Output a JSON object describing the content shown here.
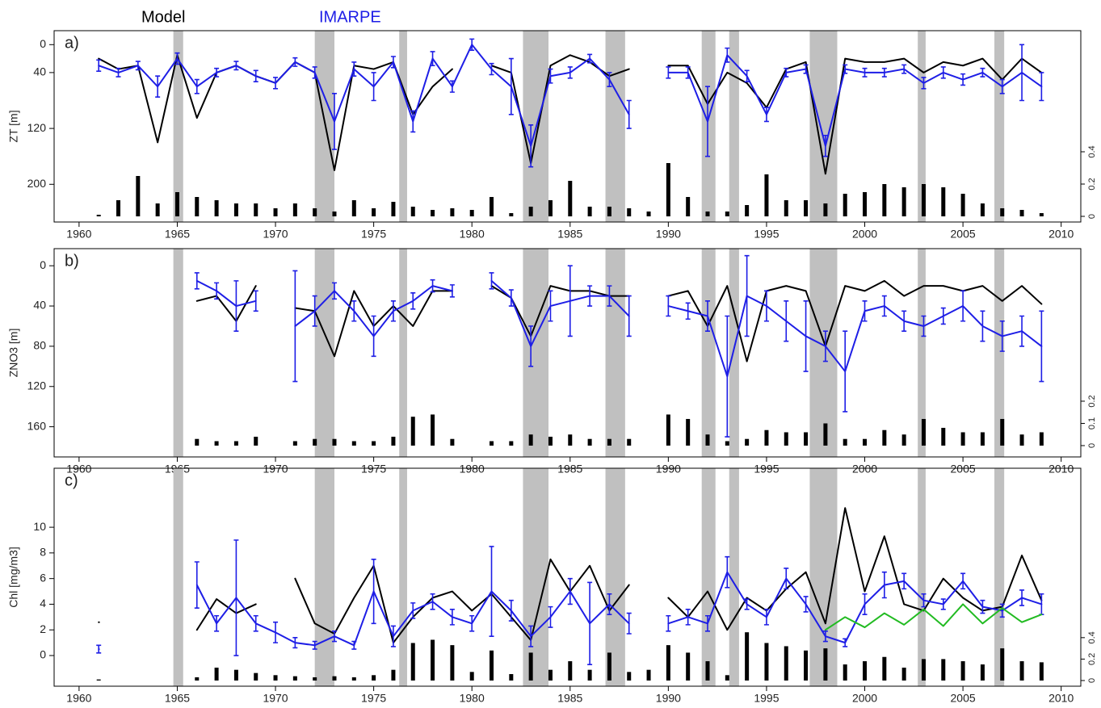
{
  "chart_data": [
    {
      "type": "line",
      "title": "a)",
      "ylabel": "ZT [m]",
      "xlim": [
        1958.73,
        2011.0
      ],
      "xticks": [
        1960,
        1965,
        1970,
        1975,
        1980,
        1985,
        1990,
        1995,
        2000,
        2005,
        2010
      ],
      "ylim": [
        254,
        -20
      ],
      "yticks": [
        0,
        40,
        120,
        200
      ],
      "y2lim": [
        -0.035,
        1.15
      ],
      "y2ticks": [
        0,
        0.2,
        0.4
      ],
      "shade_color": "#c0c0c0",
      "shaded_periods": [
        [
          1964.8,
          1965.3
        ],
        [
          1972.0,
          1973.0
        ],
        [
          1976.3,
          1976.7
        ],
        [
          1982.6,
          1983.9
        ],
        [
          1986.8,
          1987.8
        ],
        [
          1991.7,
          1992.4
        ],
        [
          1993.1,
          1993.6
        ],
        [
          1997.2,
          1998.6
        ],
        [
          2002.7,
          2003.1
        ],
        [
          2006.6,
          2007.1
        ]
      ],
      "x": [
        1961,
        1962,
        1963,
        1964,
        1965,
        1966,
        1967,
        1968,
        1969,
        1970,
        1971,
        1972,
        1973,
        1974,
        1975,
        1976,
        1977,
        1978,
        1979,
        1980,
        1981,
        1982,
        1983,
        1984,
        1985,
        1986,
        1987,
        1988,
        1989,
        1990,
        1991,
        1992,
        1993,
        1994,
        1995,
        1996,
        1997,
        1998,
        1999,
        2000,
        2001,
        2002,
        2003,
        2004,
        2005,
        2006,
        2007,
        2008,
        2009
      ],
      "series": [
        {
          "name": "Model",
          "color": "#000000",
          "values": [
            20,
            35,
            30,
            140,
            15,
            105,
            40,
            30,
            45,
            55,
            25,
            40,
            180,
            30,
            35,
            25,
            100,
            60,
            35,
            null,
            30,
            40,
            170,
            30,
            15,
            25,
            45,
            35,
            null,
            30,
            30,
            85,
            40,
            55,
            90,
            35,
            25,
            185,
            20,
            25,
            25,
            20,
            40,
            25,
            30,
            20,
            50,
            20,
            40
          ]
        },
        {
          "name": "IMARPE",
          "color": "#1e1ee6",
          "values": [
            30,
            40,
            30,
            60,
            20,
            60,
            40,
            30,
            45,
            55,
            25,
            40,
            110,
            35,
            60,
            25,
            110,
            20,
            60,
            0,
            35,
            60,
            145,
            45,
            40,
            20,
            50,
            100,
            null,
            40,
            40,
            110,
            15,
            45,
            100,
            40,
            35,
            145,
            35,
            40,
            40,
            35,
            55,
            40,
            50,
            40,
            60,
            40,
            60
          ],
          "errors": [
            8,
            6,
            6,
            15,
            8,
            10,
            6,
            6,
            8,
            8,
            6,
            8,
            40,
            10,
            20,
            8,
            15,
            10,
            8,
            8,
            8,
            40,
            30,
            10,
            8,
            6,
            10,
            20,
            null,
            8,
            8,
            50,
            10,
            8,
            10,
            6,
            6,
            15,
            6,
            6,
            6,
            6,
            8,
            8,
            8,
            6,
            10,
            40,
            20
          ]
        },
        {
          "type": "bar",
          "axis": "y2",
          "color": "#000000",
          "values": [
            0.01,
            0.1,
            0.25,
            0.08,
            0.15,
            0.12,
            0.1,
            0.08,
            0.08,
            0.05,
            0.08,
            0.05,
            0.03,
            0.1,
            0.05,
            0.09,
            0.06,
            0.04,
            0.05,
            0.04,
            0.12,
            0.02,
            0.06,
            0.1,
            0.22,
            0.06,
            0.06,
            0.05,
            0.03,
            0.33,
            0.12,
            0.03,
            0.03,
            0.07,
            0.26,
            0.1,
            0.1,
            0.08,
            0.14,
            0.15,
            0.2,
            0.18,
            0.2,
            0.18,
            0.14,
            0.08,
            0.05,
            0.04,
            0.02
          ]
        }
      ]
    },
    {
      "type": "line",
      "title": "b)",
      "ylabel": "ZNO3 [m]",
      "xlim": [
        1958.73,
        2011.0
      ],
      "xticks": [
        1960,
        1965,
        1970,
        1975,
        1980,
        1985,
        1990,
        1995,
        2000,
        2005,
        2010
      ],
      "ylim": [
        190,
        -17
      ],
      "yticks": [
        0,
        40,
        80,
        120,
        160
      ],
      "y2lim": [
        -0.051,
        0.887
      ],
      "y2ticks": [
        0,
        0.1,
        0.2
      ],
      "shade_color": "#c0c0c0",
      "shaded_periods": [
        [
          1964.8,
          1965.3
        ],
        [
          1972.0,
          1973.0
        ],
        [
          1976.3,
          1976.7
        ],
        [
          1982.6,
          1983.9
        ],
        [
          1986.8,
          1987.8
        ],
        [
          1991.7,
          1992.4
        ],
        [
          1993.1,
          1993.6
        ],
        [
          1997.2,
          1998.6
        ],
        [
          2002.7,
          2003.1
        ],
        [
          2006.6,
          2007.1
        ]
      ],
      "x": [
        1961,
        1962,
        1963,
        1964,
        1965,
        1966,
        1967,
        1968,
        1969,
        1970,
        1971,
        1972,
        1973,
        1974,
        1975,
        1976,
        1977,
        1978,
        1979,
        1980,
        1981,
        1982,
        1983,
        1984,
        1985,
        1986,
        1987,
        1988,
        1989,
        1990,
        1991,
        1992,
        1993,
        1994,
        1995,
        1996,
        1997,
        1998,
        1999,
        2000,
        2001,
        2002,
        2003,
        2004,
        2005,
        2006,
        2007,
        2008,
        2009
      ],
      "series": [
        {
          "color": "#000000",
          "values": [
            null,
            null,
            null,
            null,
            null,
            35,
            30,
            55,
            20,
            null,
            42,
            45,
            90,
            25,
            60,
            40,
            60,
            25,
            25,
            null,
            20,
            32,
            70,
            20,
            25,
            25,
            30,
            30,
            null,
            30,
            25,
            60,
            20,
            95,
            25,
            20,
            25,
            80,
            20,
            25,
            15,
            30,
            20,
            20,
            25,
            20,
            35,
            20,
            38
          ]
        },
        {
          "color": "#1e1ee6",
          "values": [
            null,
            null,
            null,
            null,
            null,
            15,
            25,
            40,
            35,
            null,
            60,
            45,
            25,
            45,
            70,
            45,
            35,
            20,
            25,
            null,
            15,
            32,
            80,
            40,
            35,
            30,
            30,
            50,
            null,
            40,
            45,
            50,
            110,
            30,
            40,
            55,
            70,
            80,
            105,
            45,
            40,
            55,
            60,
            50,
            40,
            60,
            70,
            65,
            80
          ],
          "errors": [
            null,
            null,
            null,
            null,
            null,
            8,
            8,
            25,
            10,
            null,
            55,
            15,
            8,
            10,
            20,
            10,
            8,
            6,
            6,
            null,
            8,
            8,
            20,
            15,
            35,
            10,
            10,
            20,
            null,
            10,
            8,
            15,
            60,
            40,
            15,
            20,
            35,
            15,
            40,
            10,
            10,
            10,
            10,
            8,
            15,
            15,
            15,
            15,
            35
          ]
        },
        {
          "type": "bar",
          "axis": "y2",
          "color": "#000000",
          "values": [
            null,
            null,
            null,
            null,
            null,
            0.03,
            0.02,
            0.02,
            0.04,
            null,
            0.02,
            0.03,
            0.03,
            0.02,
            0.02,
            0.04,
            0.13,
            0.14,
            0.03,
            null,
            0.02,
            0.02,
            0.05,
            0.04,
            0.05,
            0.03,
            0.03,
            0.03,
            null,
            0.14,
            0.12,
            0.05,
            0.02,
            0.03,
            0.07,
            0.06,
            0.06,
            0.1,
            0.03,
            0.03,
            0.07,
            0.05,
            0.12,
            0.08,
            0.06,
            0.06,
            0.12,
            0.05,
            0.06
          ]
        }
      ]
    },
    {
      "type": "line",
      "title": "c)",
      "ylabel": "Chl [mg/m3]",
      "xlim": [
        1958.73,
        2011.0
      ],
      "xticks": [
        1960,
        1965,
        1970,
        1975,
        1980,
        1985,
        1990,
        1995,
        2000,
        2005,
        2010
      ],
      "ylim": [
        -2.39,
        14.6
      ],
      "yticks": [
        0,
        2,
        4,
        6,
        8,
        10
      ],
      "y2lim": [
        -0.053,
        1.98
      ],
      "y2ticks": [
        0,
        0.2,
        0.4
      ],
      "shade_color": "#c0c0c0",
      "shaded_periods": [
        [
          1964.8,
          1965.3
        ],
        [
          1972.0,
          1973.0
        ],
        [
          1976.3,
          1976.7
        ],
        [
          1982.6,
          1983.9
        ],
        [
          1986.8,
          1987.8
        ],
        [
          1991.7,
          1992.4
        ],
        [
          1993.1,
          1993.6
        ],
        [
          1997.2,
          1998.6
        ],
        [
          2002.7,
          2003.1
        ],
        [
          2006.6,
          2007.1
        ]
      ],
      "x": [
        1961,
        1962,
        1963,
        1964,
        1965,
        1966,
        1967,
        1968,
        1969,
        1970,
        1971,
        1972,
        1973,
        1974,
        1975,
        1976,
        1977,
        1978,
        1979,
        1980,
        1981,
        1982,
        1983,
        1984,
        1985,
        1986,
        1987,
        1988,
        1989,
        1990,
        1991,
        1992,
        1993,
        1994,
        1995,
        1996,
        1997,
        1998,
        1999,
        2000,
        2001,
        2002,
        2003,
        2004,
        2005,
        2006,
        2007,
        2008,
        2009
      ],
      "series": [
        {
          "color": "#000000",
          "values": [
            2.6,
            null,
            null,
            null,
            null,
            2.0,
            4.4,
            3.3,
            4.0,
            null,
            6.0,
            2.5,
            1.7,
            4.5,
            7.0,
            1.0,
            3.0,
            4.5,
            5.0,
            3.5,
            4.8,
            3.0,
            1.2,
            7.5,
            5.0,
            7.0,
            3.5,
            5.5,
            null,
            4.5,
            3.0,
            5.0,
            2.0,
            4.5,
            3.5,
            5.2,
            6.5,
            2.5,
            11.5,
            5.0,
            9.3,
            4.0,
            3.5,
            6.0,
            4.5,
            3.5,
            3.8,
            7.8,
            4.3
          ]
        },
        {
          "color": "#1e1ee6",
          "values": [
            0.5,
            null,
            null,
            null,
            null,
            5.5,
            2.5,
            4.5,
            2.5,
            1.8,
            1.0,
            0.8,
            1.5,
            0.8,
            5.0,
            1.5,
            3.5,
            4.2,
            3.0,
            2.5,
            5.0,
            3.5,
            1.5,
            3.0,
            5.0,
            2.5,
            4.0,
            2.5,
            null,
            2.5,
            3.0,
            2.5,
            6.5,
            4.0,
            3.0,
            6.0,
            4.0,
            1.5,
            1.0,
            4.0,
            5.5,
            5.8,
            4.3,
            4.0,
            5.8,
            3.8,
            3.5,
            4.5,
            4.0
          ],
          "errors": [
            0.3,
            null,
            null,
            null,
            null,
            1.8,
            0.6,
            4.5,
            0.6,
            0.8,
            0.4,
            0.3,
            0.4,
            0.3,
            2.5,
            0.8,
            0.6,
            0.6,
            0.6,
            0.6,
            3.5,
            0.8,
            0.8,
            0.8,
            1.0,
            3.2,
            0.8,
            0.8,
            null,
            0.6,
            0.6,
            0.6,
            1.2,
            0.4,
            0.6,
            0.8,
            0.6,
            0.4,
            0.3,
            0.8,
            1.0,
            0.6,
            0.5,
            0.4,
            0.6,
            0.5,
            0.5,
            0.6,
            0.8
          ]
        },
        {
          "color": "#22bb22",
          "values": [
            null,
            null,
            null,
            null,
            null,
            null,
            null,
            null,
            null,
            null,
            null,
            null,
            null,
            null,
            null,
            null,
            null,
            null,
            null,
            null,
            null,
            null,
            null,
            null,
            null,
            null,
            null,
            null,
            null,
            null,
            null,
            null,
            null,
            null,
            null,
            null,
            null,
            2.0,
            3.0,
            2.2,
            3.3,
            2.4,
            3.6,
            2.3,
            4.0,
            2.5,
            3.7,
            2.6,
            3.2
          ]
        },
        {
          "type": "bar",
          "axis": "y2",
          "color": "#000000",
          "values": [
            0.01,
            null,
            null,
            null,
            null,
            0.03,
            0.12,
            0.1,
            0.07,
            0.05,
            0.04,
            0.03,
            0.04,
            0.03,
            0.05,
            0.1,
            0.35,
            0.38,
            0.33,
            0.08,
            0.28,
            0.06,
            0.26,
            0.1,
            0.18,
            0.1,
            0.26,
            0.08,
            0.1,
            0.33,
            0.26,
            0.18,
            0.05,
            0.45,
            0.35,
            0.32,
            0.28,
            0.3,
            0.15,
            0.18,
            0.22,
            0.12,
            0.2,
            0.2,
            0.18,
            0.15,
            0.3,
            0.18,
            0.17
          ]
        }
      ]
    }
  ]
}
